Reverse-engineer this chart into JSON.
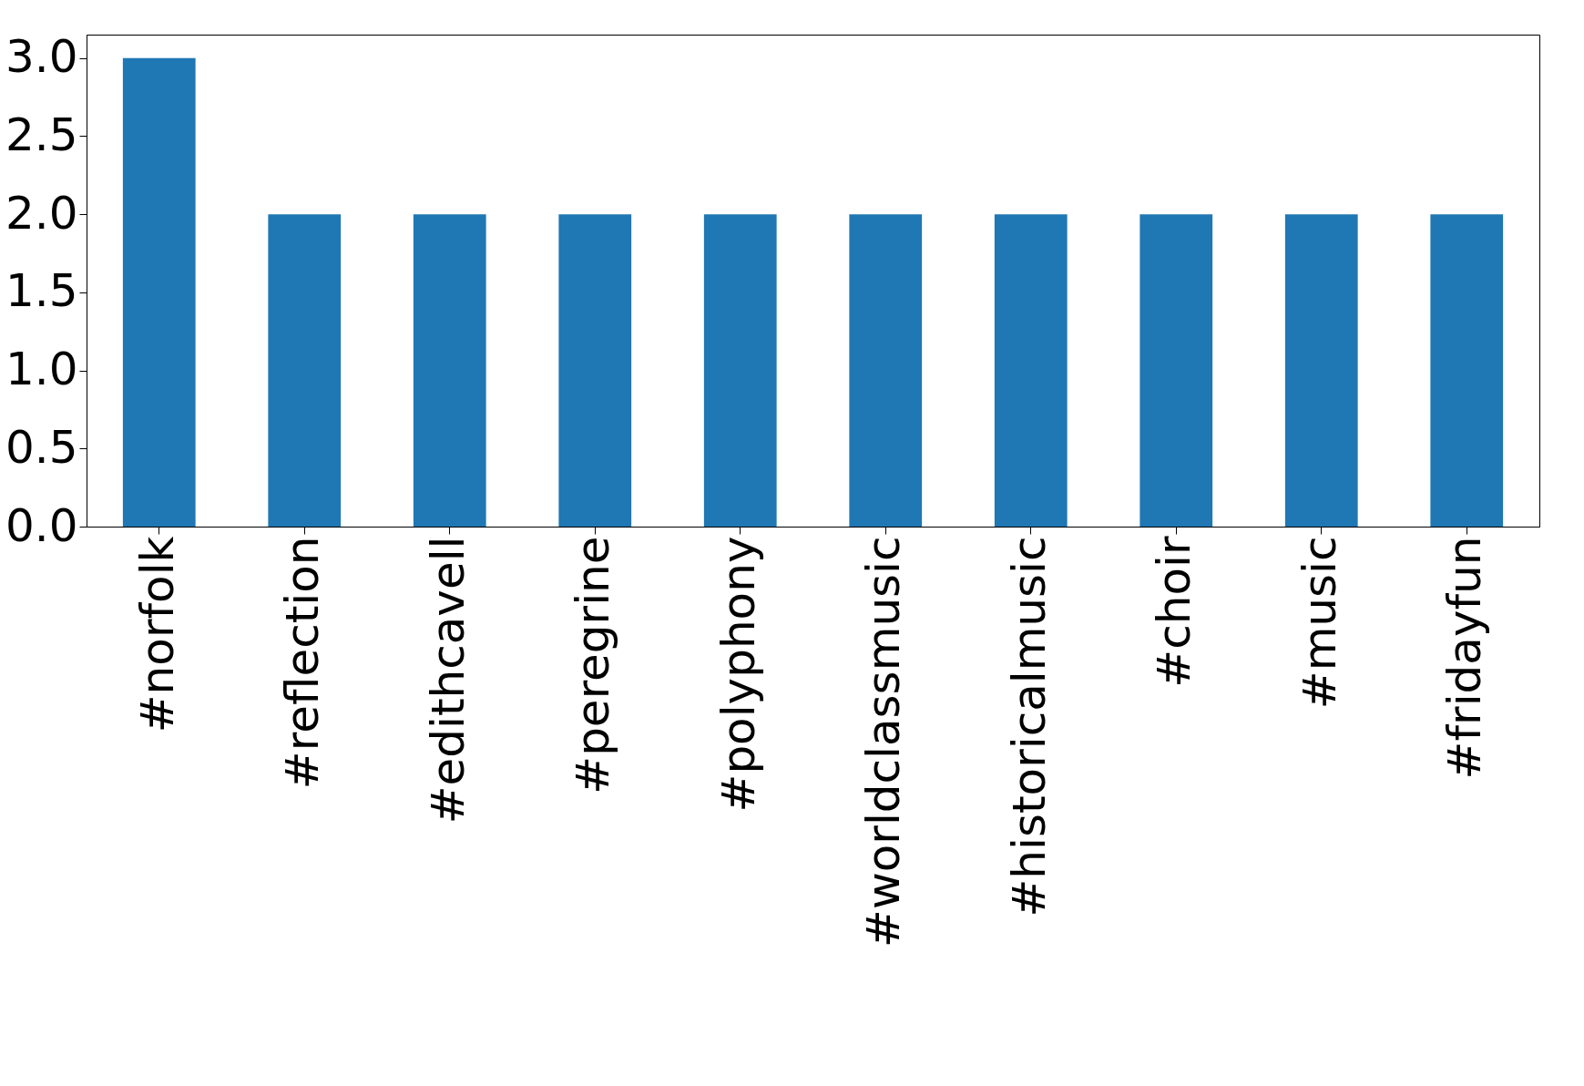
{
  "chart_data": {
    "type": "bar",
    "categories": [
      "#norfolk",
      "#reflection",
      "#edithcavell",
      "#peregrine",
      "#polyphony",
      "#worldclassmusic",
      "#historicalmusic",
      "#choir",
      "#music",
      "#fridayfun"
    ],
    "values": [
      3,
      2,
      2,
      2,
      2,
      2,
      2,
      2,
      2,
      2
    ],
    "color": "#1f77b4",
    "ylim": [
      0,
      3.15
    ],
    "yticks": [
      {
        "value": 0,
        "label": "0.0"
      },
      0.5,
      {
        "value": 1,
        "label": "1.0"
      },
      1.5,
      {
        "value": 2,
        "label": "2.0"
      },
      2.5,
      {
        "value": 3,
        "label": "3.0"
      }
    ],
    "grid": false
  }
}
